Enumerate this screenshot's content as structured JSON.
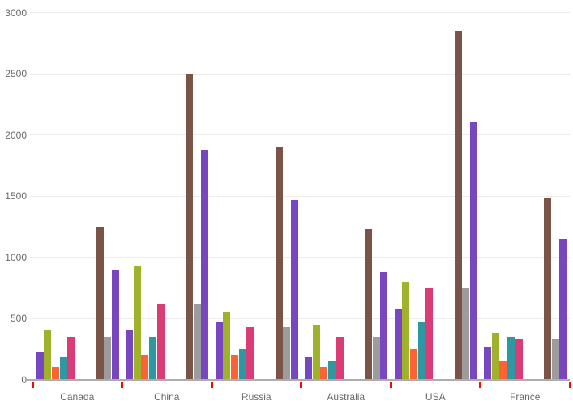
{
  "chart_data": {
    "type": "bar",
    "title": "",
    "xlabel": "",
    "ylabel": "",
    "categories": [
      "Canada",
      "China",
      "Russia",
      "Australia",
      "USA",
      "France"
    ],
    "series": [
      {
        "name": "purple",
        "color": "#7846BE",
        "values": [
          220,
          400,
          470,
          180,
          580,
          270
        ]
      },
      {
        "name": "green",
        "color": "#A0B22C",
        "values": [
          400,
          930,
          550,
          450,
          800,
          380
        ]
      },
      {
        "name": "orange",
        "color": "#F96336",
        "values": [
          100,
          200,
          200,
          100,
          250,
          150
        ]
      },
      {
        "name": "teal",
        "color": "#2E98A2",
        "values": [
          180,
          350,
          250,
          150,
          470,
          350
        ]
      },
      {
        "name": "pink",
        "color": "#DA3C78",
        "values": [
          350,
          620,
          430,
          350,
          750,
          330
        ]
      },
      {
        "name": "brown",
        "color": "#7A5447",
        "values": [
          1250,
          2500,
          1900,
          1230,
          2850,
          1480
        ]
      },
      {
        "name": "gray",
        "color": "#9C9C9C",
        "values": [
          350,
          620,
          430,
          350,
          750,
          330
        ]
      },
      {
        "name": "violet",
        "color": "#7846BE",
        "values": [
          900,
          1880,
          1470,
          880,
          2100,
          1150
        ]
      }
    ],
    "cluster_split_after_series": 5,
    "ylim": [
      0,
      3000
    ],
    "yticks": [
      "0",
      "500",
      "1000",
      "1500",
      "2000",
      "2500",
      "3000"
    ],
    "grid": true,
    "legend": "none",
    "colors": {
      "grid_line": "#EBEBEB",
      "axis_line": "#ADADAD",
      "category_tick": "#F70707",
      "label_text": "#6A6A6A",
      "background": "#FFFFFF"
    }
  }
}
